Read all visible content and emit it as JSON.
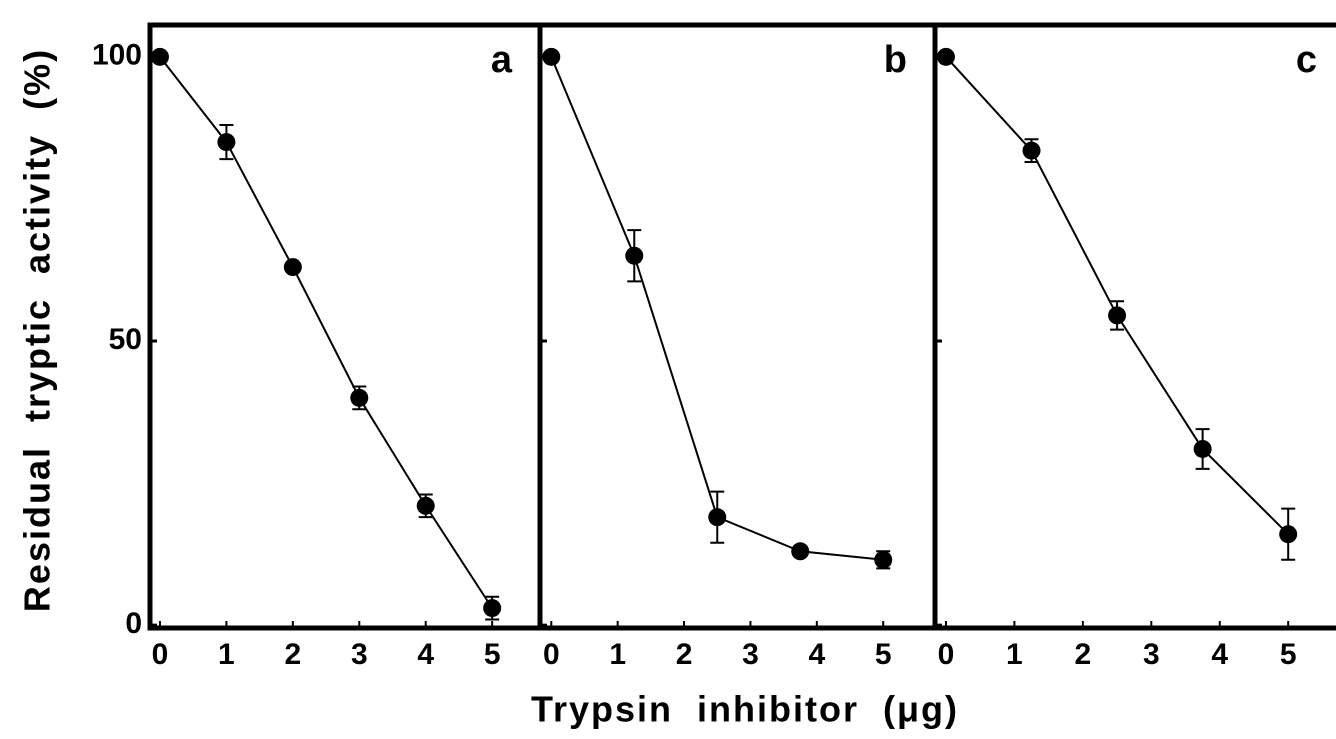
{
  "y_label": "Residual tryptic activity (%)",
  "x_label": "Trypsin inhibitor (μg)",
  "chart_data": [
    {
      "type": "line",
      "panel_label": "a",
      "x": [
        0,
        1,
        2,
        3,
        4,
        5
      ],
      "values": [
        100,
        85,
        63,
        40,
        21,
        3
      ],
      "errors": [
        null,
        3,
        null,
        2,
        2,
        2
      ],
      "xlim": [
        -0.15,
        5.72
      ],
      "ylim": [
        -0.5,
        105.6
      ],
      "xticks": [
        0,
        1,
        2,
        3,
        4,
        5
      ],
      "yticks": [
        0,
        50,
        100
      ],
      "color": "#000000"
    },
    {
      "type": "line",
      "panel_label": "b",
      "x": [
        0,
        1.25,
        2.5,
        3.75,
        5
      ],
      "values": [
        100,
        65,
        19,
        13,
        11.5
      ],
      "errors": [
        null,
        4.5,
        4.5,
        null,
        1.5
      ],
      "xlim": [
        -0.17,
        5.78
      ],
      "ylim": [
        -0.5,
        105.6
      ],
      "xticks": [
        0,
        1,
        2,
        3,
        4,
        5
      ],
      "yticks": [
        0,
        50,
        100
      ],
      "color": "#000000"
    },
    {
      "type": "line",
      "panel_label": "c",
      "x": [
        0,
        1.25,
        2.5,
        3.75,
        5
      ],
      "values": [
        100,
        83.5,
        54.5,
        31,
        16
      ],
      "errors": [
        null,
        2,
        2.5,
        3.5,
        4.5
      ],
      "xlim": [
        -0.16,
        5.83
      ],
      "ylim": [
        -0.5,
        105.6
      ],
      "xticks": [
        0,
        1,
        2,
        3,
        4,
        5
      ],
      "yticks": [
        0,
        50,
        100
      ],
      "color": "#000000"
    }
  ]
}
